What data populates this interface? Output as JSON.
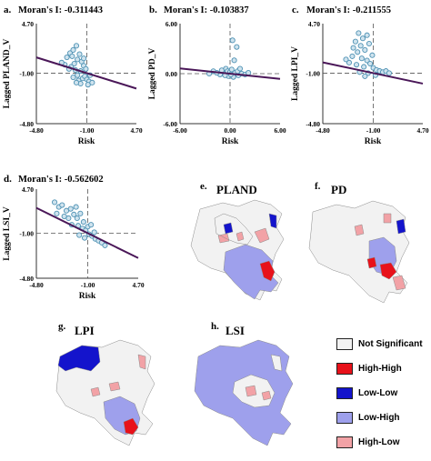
{
  "colors": {
    "not_significant": "#f2f2f2",
    "high_high": "#e8111a",
    "low_low": "#1414cc",
    "low_high": "#9ea0ec",
    "high_low": "#f2a2a6",
    "point": "#4f92b4",
    "regression": "#4a1758"
  },
  "scatter_plots": [
    {
      "letter": "a.",
      "moran": "Moran's I: -0.311443",
      "ylabel": "Lagged PLAND_V",
      "xlabel": "Risk",
      "y_ticks": [
        "4.70",
        "-1.00",
        "-4.80"
      ],
      "x_ticks": [
        "-4.80",
        "-1.00",
        "4.70"
      ]
    },
    {
      "letter": "b.",
      "moran": "Moran's I: -0.103837",
      "ylabel": "Lagged PD_V",
      "xlabel": "Risk",
      "y_ticks": [
        "6.00",
        "0.00",
        "-6.00"
      ],
      "x_ticks": [
        "-6.00",
        "0.00",
        "6.00"
      ]
    },
    {
      "letter": "c.",
      "moran": "Moran's I: -0.211555",
      "ylabel": "Lagged LPI_V",
      "xlabel": "Risk",
      "y_ticks": [
        "4.70",
        "-1.00",
        "-4.80"
      ],
      "x_ticks": [
        "-4.80",
        "-1.00",
        "4.70"
      ]
    },
    {
      "letter": "d.",
      "moran": "Moran's I: -0.562602",
      "ylabel": "Lagged LSI_V",
      "xlabel": "Risk",
      "y_ticks": [
        "4.70",
        "-1.00",
        "-4.80"
      ],
      "x_ticks": [
        "-4.80",
        "-1.00",
        "4.70"
      ]
    }
  ],
  "maps": [
    {
      "letter": "e.",
      "title": "PLAND"
    },
    {
      "letter": "f.",
      "title": "PD"
    },
    {
      "letter": "g.",
      "title": "LPI"
    },
    {
      "letter": "h.",
      "title": "LSI"
    }
  ],
  "legend": {
    "items": [
      {
        "label": "Not Significant",
        "color": "#f2f2f2"
      },
      {
        "label": "High-High",
        "color": "#e8111a"
      },
      {
        "label": "Low-Low",
        "color": "#1414cc"
      },
      {
        "label": "Low-High",
        "color": "#9ea0ec"
      },
      {
        "label": "High-Low",
        "color": "#f2a2a6"
      }
    ]
  },
  "chart_data": [
    {
      "type": "scatter",
      "title": "Moran's I: -0.311443",
      "xlabel": "Risk",
      "ylabel": "Lagged PLAND_V",
      "xlim": [
        -4.8,
        4.7
      ],
      "ylim": [
        -4.8,
        4.7
      ],
      "slope": -0.311443,
      "points": [
        [
          -1.9,
          1.5
        ],
        [
          -1.6,
          1.9
        ],
        [
          -1.3,
          2.2
        ],
        [
          -1.0,
          2.6
        ],
        [
          -0.9,
          1.3
        ],
        [
          -1.2,
          0.9
        ],
        [
          -1.5,
          0.6
        ],
        [
          -0.7,
          1.8
        ],
        [
          -0.5,
          1.1
        ],
        [
          -0.3,
          0.7
        ],
        [
          -0.6,
          0.2
        ],
        [
          -0.9,
          -0.2
        ],
        [
          -1.1,
          0.3
        ],
        [
          -0.4,
          -0.5
        ],
        [
          -0.2,
          -0.3
        ],
        [
          0.0,
          -0.6
        ],
        [
          0.2,
          -0.8
        ],
        [
          -0.8,
          -0.7
        ],
        [
          -1.3,
          -0.4
        ],
        [
          -1.7,
          0.4
        ],
        [
          -2.1,
          0.8
        ],
        [
          -2.4,
          1.0
        ],
        [
          -0.1,
          0.4
        ],
        [
          0.3,
          -0.2
        ],
        [
          -0.6,
          -1.0
        ],
        [
          -1.0,
          -0.9
        ],
        [
          0.1,
          -1.1
        ],
        [
          0.5,
          -0.9
        ],
        [
          -0.3,
          1.4
        ],
        [
          -1.4,
          1.6
        ]
      ]
    },
    {
      "type": "scatter",
      "title": "Moran's I: -0.103837",
      "xlabel": "Risk",
      "ylabel": "Lagged PD_V",
      "xlim": [
        -6.0,
        6.0
      ],
      "ylim": [
        -6.0,
        6.0
      ],
      "slope": -0.103837,
      "points": [
        [
          0.3,
          4.0
        ],
        [
          0.8,
          3.2
        ],
        [
          0.5,
          1.6
        ],
        [
          -0.5,
          0.6
        ],
        [
          -0.3,
          0.3
        ],
        [
          0.0,
          0.2
        ],
        [
          0.2,
          0.5
        ],
        [
          0.6,
          0.1
        ],
        [
          -0.8,
          0.0
        ],
        [
          -1.2,
          -0.1
        ],
        [
          -1.6,
          0.1
        ],
        [
          -2.0,
          0.3
        ],
        [
          1.0,
          -0.2
        ],
        [
          1.4,
          0.0
        ],
        [
          1.8,
          -0.1
        ],
        [
          -0.2,
          -0.3
        ],
        [
          0.4,
          -0.4
        ],
        [
          0.9,
          0.3
        ],
        [
          -1.0,
          0.4
        ],
        [
          2.2,
          0.1
        ],
        [
          -2.5,
          0.0
        ],
        [
          1.2,
          0.6
        ],
        [
          0.1,
          -0.1
        ],
        [
          -0.6,
          -0.2
        ]
      ]
    },
    {
      "type": "scatter",
      "title": "Moran's I: -0.211555",
      "xlabel": "Risk",
      "ylabel": "Lagged LPI_V",
      "xlim": [
        -4.8,
        4.7
      ],
      "ylim": [
        -4.8,
        4.7
      ],
      "slope": -0.211555,
      "points": [
        [
          -1.4,
          3.8
        ],
        [
          -1.0,
          3.3
        ],
        [
          -1.7,
          3.0
        ],
        [
          -0.6,
          3.6
        ],
        [
          -1.2,
          2.6
        ],
        [
          -0.8,
          2.2
        ],
        [
          -1.5,
          2.0
        ],
        [
          -0.4,
          2.8
        ],
        [
          -2.0,
          1.6
        ],
        [
          -1.1,
          1.4
        ],
        [
          -0.6,
          1.2
        ],
        [
          -0.3,
          0.9
        ],
        [
          -0.9,
          0.6
        ],
        [
          -1.6,
          0.8
        ],
        [
          -2.3,
          1.0
        ],
        [
          0.0,
          0.5
        ],
        [
          0.3,
          0.3
        ],
        [
          0.6,
          0.2
        ],
        [
          0.9,
          0.1
        ],
        [
          1.2,
          0.2
        ],
        [
          -0.5,
          0.0
        ],
        [
          -1.3,
          0.1
        ],
        [
          0.2,
          -0.2
        ],
        [
          -0.8,
          -0.3
        ],
        [
          1.5,
          0.0
        ],
        [
          -2.6,
          1.3
        ],
        [
          -0.1,
          1.7
        ],
        [
          -1.9,
          2.4
        ]
      ]
    },
    {
      "type": "scatter",
      "title": "Moran's I: -0.562602",
      "xlabel": "Risk",
      "ylabel": "Lagged LSI_V",
      "xlim": [
        -4.8,
        4.7
      ],
      "ylim": [
        -4.8,
        4.7
      ],
      "slope": -0.562602,
      "points": [
        [
          -3.1,
          3.3
        ],
        [
          -2.7,
          2.8
        ],
        [
          -2.4,
          3.0
        ],
        [
          -2.0,
          2.4
        ],
        [
          -1.6,
          2.6
        ],
        [
          -1.3,
          2.0
        ],
        [
          -1.0,
          1.6
        ],
        [
          -0.7,
          2.1
        ],
        [
          -0.4,
          1.2
        ],
        [
          -1.8,
          1.6
        ],
        [
          -0.9,
          0.8
        ],
        [
          -0.5,
          0.5
        ],
        [
          -0.2,
          0.3
        ],
        [
          0.1,
          -0.1
        ],
        [
          0.4,
          -0.3
        ],
        [
          0.7,
          -0.6
        ],
        [
          1.0,
          -0.8
        ],
        [
          1.3,
          -1.0
        ],
        [
          -1.5,
          0.9
        ],
        [
          -2.2,
          1.8
        ],
        [
          0.0,
          0.7
        ],
        [
          0.6,
          0.1
        ],
        [
          -0.8,
          -0.2
        ],
        [
          -0.3,
          -0.5
        ],
        [
          1.6,
          -1.3
        ],
        [
          -2.9,
          2.1
        ],
        [
          -1.1,
          2.8
        ],
        [
          0.3,
          0.9
        ]
      ]
    }
  ]
}
